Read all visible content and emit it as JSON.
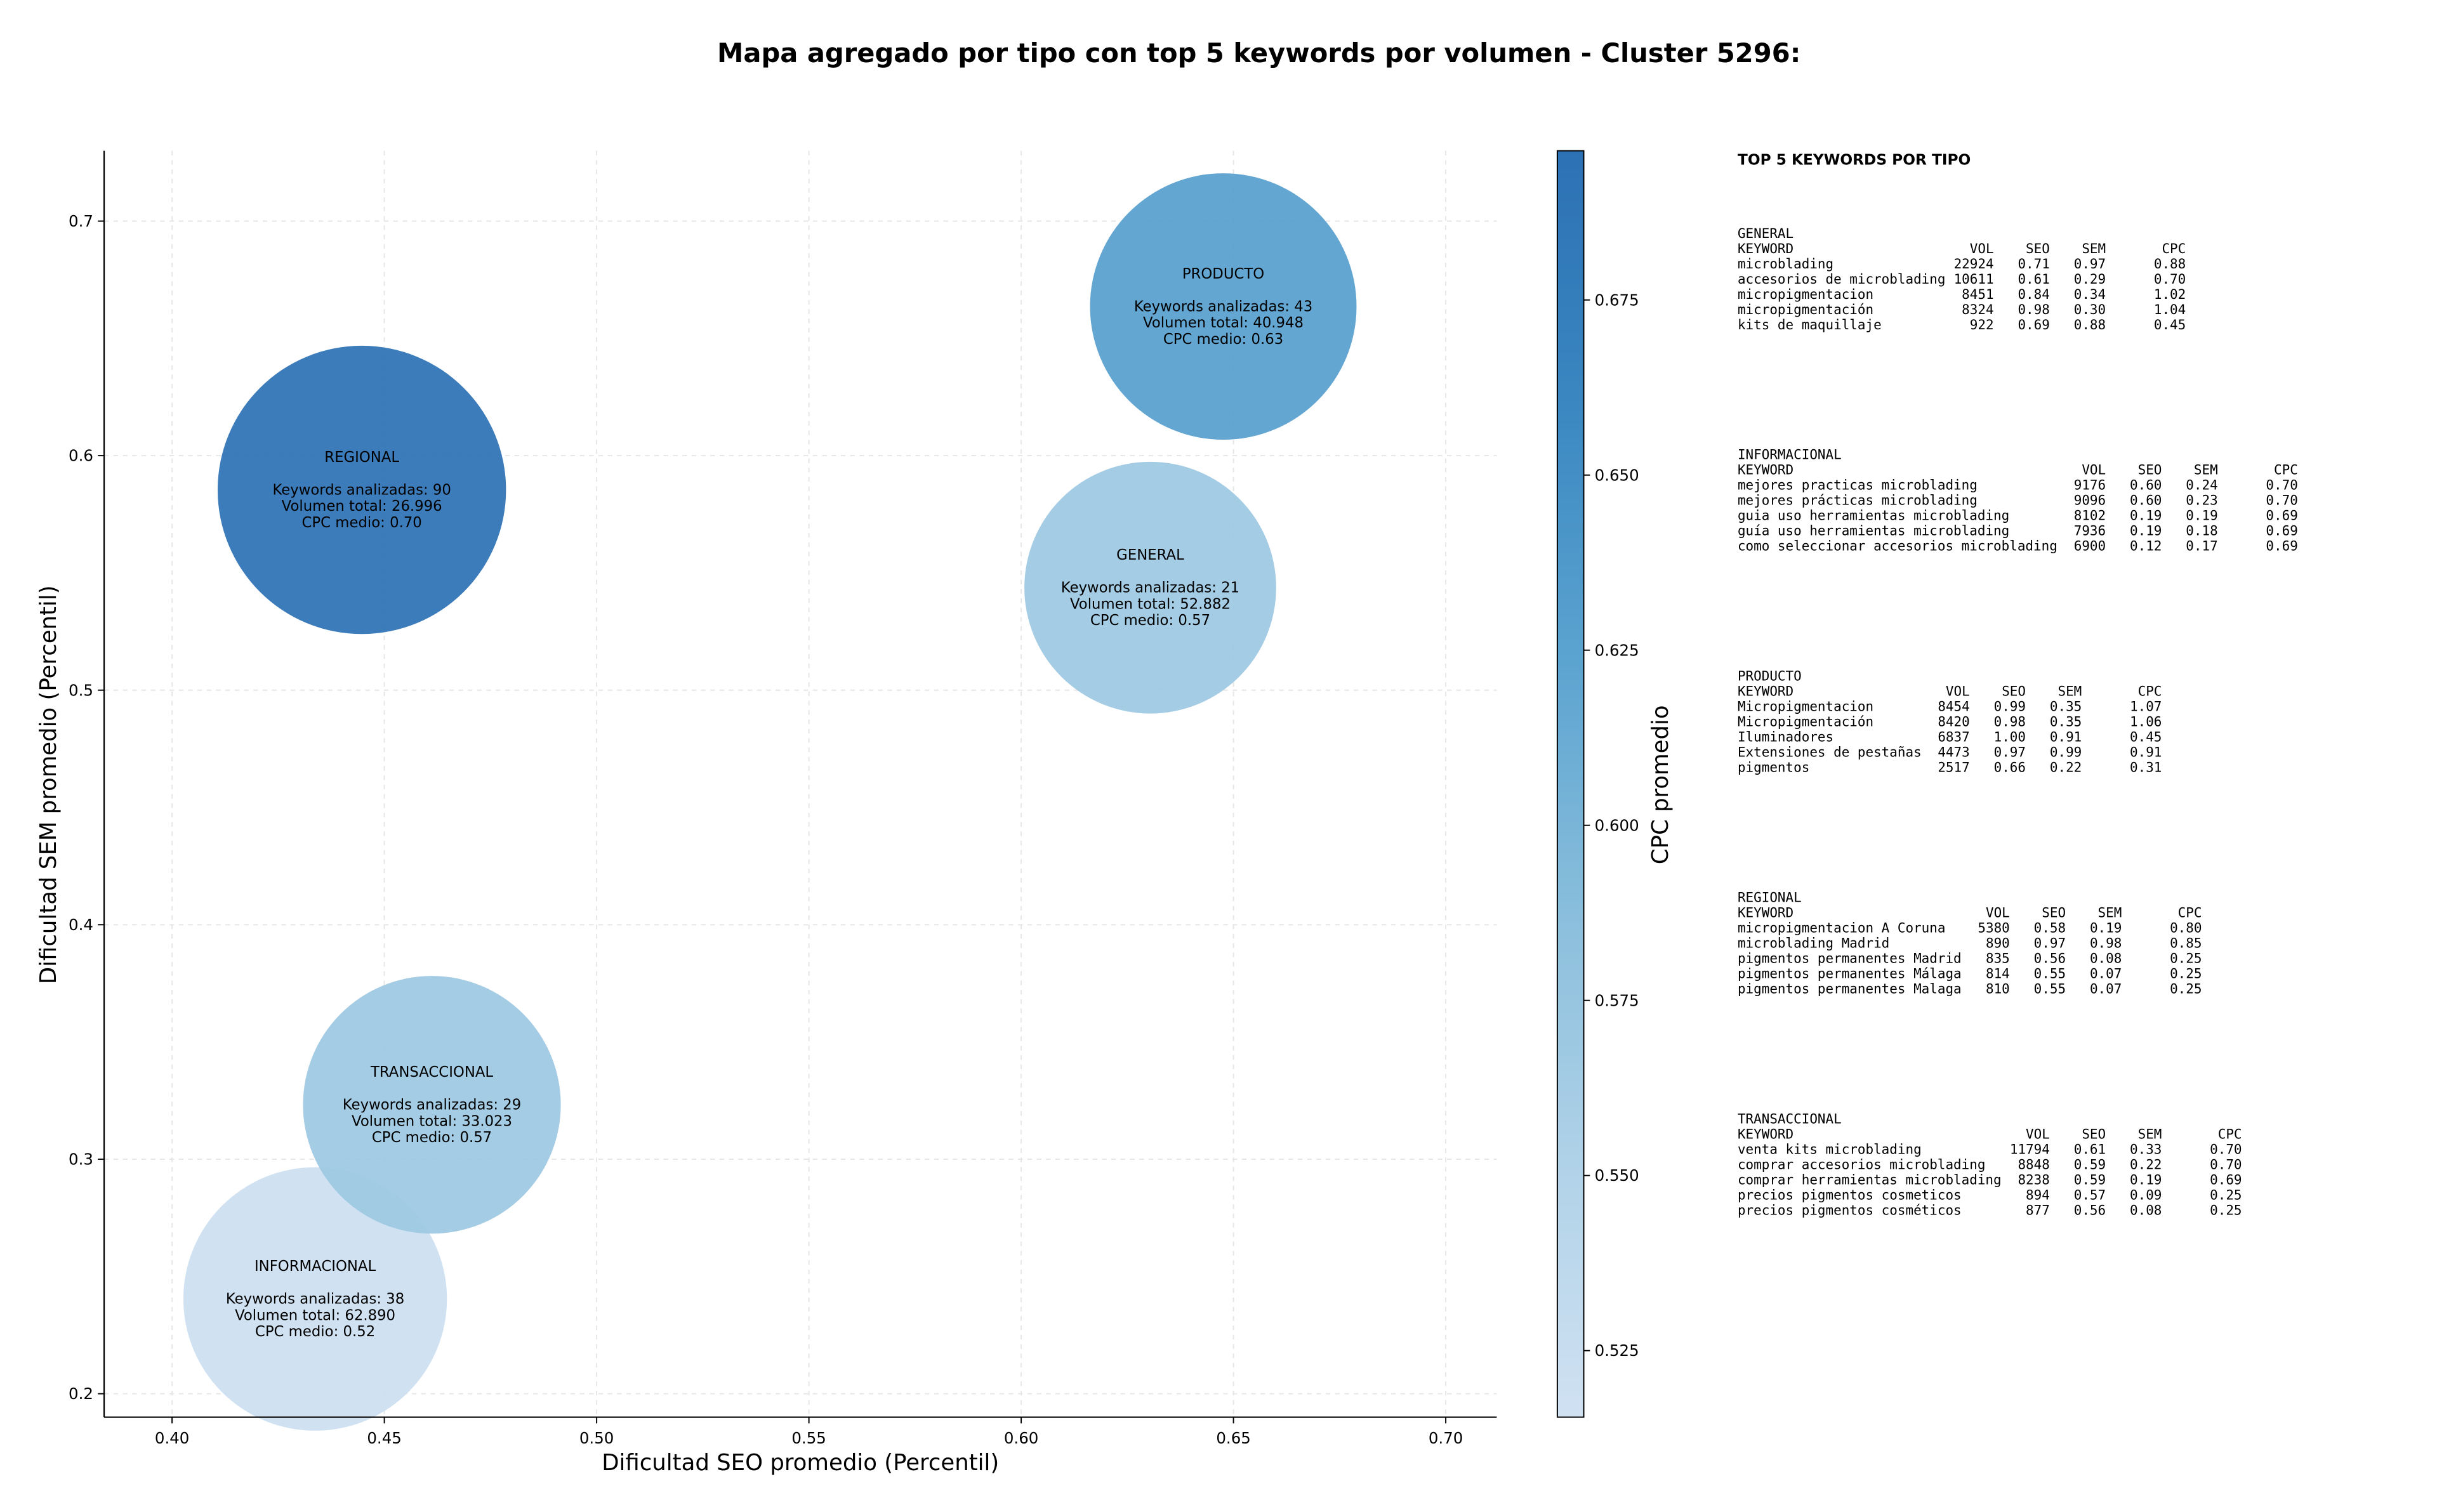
{
  "chart_data": {
    "type": "bubble",
    "title": "Mapa agregado por tipo con top 5 keywords por volumen - Cluster 5296:",
    "x_label": "Dificultad SEO promedio (Percentil)",
    "y_label": "Dificultad SEM promedio (Percentil)",
    "colorbar_label": "CPC promedio",
    "xlim": [
      0.384,
      0.712
    ],
    "ylim": [
      0.19,
      0.73
    ],
    "clim": [
      0.5155,
      0.6963
    ],
    "grid": true,
    "colorscale": [
      "#d0e1f2",
      "#b0d2e8",
      "#89bedc",
      "#5ba3d0",
      "#3a87c1",
      "#2c71b4"
    ],
    "xticks": [
      {
        "value": 0.4,
        "label": "0.40"
      },
      {
        "value": 0.45,
        "label": "0.45"
      },
      {
        "value": 0.5,
        "label": "0.50"
      },
      {
        "value": 0.55,
        "label": "0.55"
      },
      {
        "value": 0.6,
        "label": "0.60"
      },
      {
        "value": 0.65,
        "label": "0.65"
      },
      {
        "value": 0.7,
        "label": "0.70"
      }
    ],
    "yticks": [
      0.2,
      0.3,
      0.4,
      0.5,
      0.6,
      0.7
    ],
    "cticks": [
      0.525,
      {
        "value": 0.55,
        "label": "0.550"
      },
      0.575,
      {
        "value": 0.6,
        "label": "0.600"
      },
      0.625,
      {
        "value": 0.65,
        "label": "0.650"
      },
      0.675
    ],
    "bubble_text": {
      "keywords": "Keywords analizadas:",
      "volume": "Volumen total:",
      "cpc": "CPC medio:"
    },
    "names": [
      "INFORMACIONAL",
      "TRANSACCIONAL",
      "REGIONAL",
      "PRODUCTO",
      "GENERAL"
    ],
    "x": [
      0.4337,
      0.4612,
      0.4447,
      0.6476,
      0.6304
    ],
    "y": [
      0.2404,
      0.3232,
      0.5854,
      0.6636,
      0.5437
    ],
    "keywords": [
      38,
      29,
      90,
      43,
      21
    ],
    "volume": [
      62890,
      33023,
      26996,
      40948,
      52882
    ],
    "volume_labels": [
      "62.890",
      "33.023",
      "26.996",
      "40.948",
      "52.882"
    ],
    "cpc": [
      0.52,
      0.57,
      0.7,
      0.63,
      0.57
    ],
    "cpc_labels": [
      "0.52",
      "0.57",
      "0.70",
      "0.63",
      "0.57"
    ]
  },
  "panel": {
    "title": "TOP 5 KEYWORDS POR TIPO",
    "header": [
      "KEYWORD",
      "VOL",
      "SEO",
      "SEM",
      "CPC"
    ],
    "tables": [
      {
        "title": "GENERAL",
        "rows": [
          [
            "microblading",
            "22924",
            "0.71",
            "0.97",
            "0.88"
          ],
          [
            "accesorios de microblading",
            "10611",
            "0.61",
            "0.29",
            "0.70"
          ],
          [
            "micropigmentacion",
            "8451",
            "0.84",
            "0.34",
            "1.02"
          ],
          [
            "micropigmentación",
            "8324",
            "0.98",
            "0.30",
            "1.04"
          ],
          [
            "kits de maquillaje",
            "922",
            "0.69",
            "0.88",
            "0.45"
          ]
        ]
      },
      {
        "title": "INFORMACIONAL",
        "rows": [
          [
            "mejores practicas microblading",
            "9176",
            "0.60",
            "0.24",
            "0.70"
          ],
          [
            "mejores prácticas microblading",
            "9096",
            "0.60",
            "0.23",
            "0.70"
          ],
          [
            "guia uso herramientas microblading",
            "8102",
            "0.19",
            "0.19",
            "0.69"
          ],
          [
            "guía uso herramientas microblading",
            "7936",
            "0.19",
            "0.18",
            "0.69"
          ],
          [
            "como seleccionar accesorios microblading",
            "6900",
            "0.12",
            "0.17",
            "0.69"
          ]
        ]
      },
      {
        "title": "PRODUCTO",
        "rows": [
          [
            "Micropigmentacion",
            "8454",
            "0.99",
            "0.35",
            "1.07"
          ],
          [
            "Micropigmentación",
            "8420",
            "0.98",
            "0.35",
            "1.06"
          ],
          [
            "Iluminadores",
            "6837",
            "1.00",
            "0.91",
            "0.45"
          ],
          [
            "Extensiones de pestañas",
            "4473",
            "0.97",
            "0.99",
            "0.91"
          ],
          [
            "pigmentos",
            "2517",
            "0.66",
            "0.22",
            "0.31"
          ]
        ]
      },
      {
        "title": "REGIONAL",
        "rows": [
          [
            "micropigmentacion A Coruna",
            "5380",
            "0.58",
            "0.19",
            "0.80"
          ],
          [
            "microblading Madrid",
            "890",
            "0.97",
            "0.98",
            "0.85"
          ],
          [
            "pigmentos permanentes Madrid",
            "835",
            "0.56",
            "0.08",
            "0.25"
          ],
          [
            "pigmentos permanentes Málaga",
            "814",
            "0.55",
            "0.07",
            "0.25"
          ],
          [
            "pigmentos permanentes Malaga",
            "810",
            "0.55",
            "0.07",
            "0.25"
          ]
        ]
      },
      {
        "title": "TRANSACCIONAL",
        "rows": [
          [
            "venta kits microblading",
            "11794",
            "0.61",
            "0.33",
            "0.70"
          ],
          [
            "comprar accesorios microblading",
            "8848",
            "0.59",
            "0.22",
            "0.70"
          ],
          [
            "comprar herramientas microblading",
            "8238",
            "0.59",
            "0.19",
            "0.69"
          ],
          [
            "precios pigmentos cosmeticos",
            "894",
            "0.57",
            "0.09",
            "0.25"
          ],
          [
            "precios pigmentos cosméticos",
            "877",
            "0.56",
            "0.08",
            "0.25"
          ]
        ]
      }
    ]
  }
}
